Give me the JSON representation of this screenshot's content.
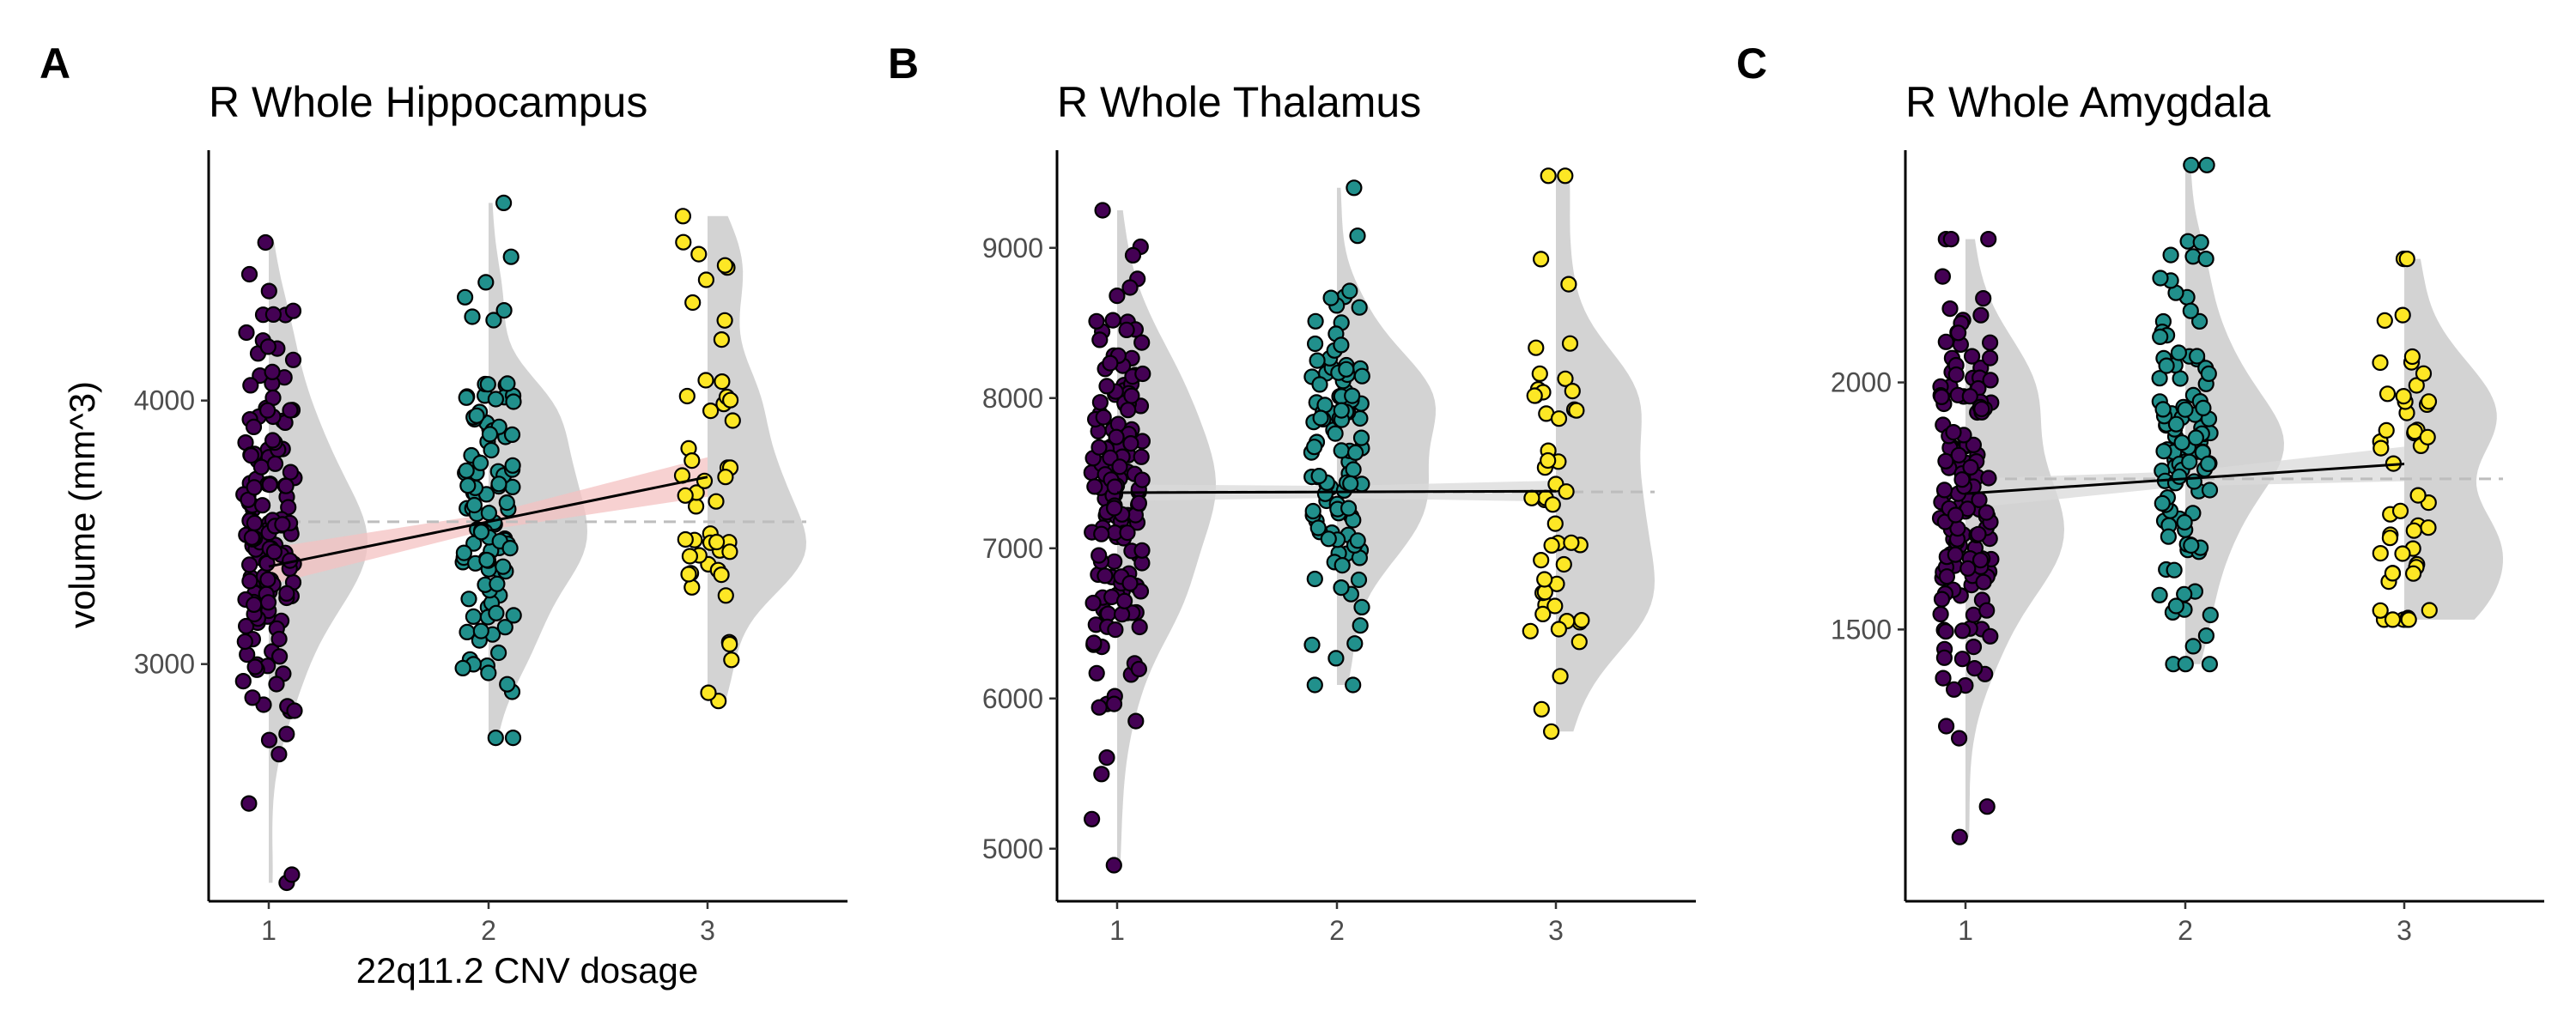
{
  "chart_data": [
    {
      "panel": "A",
      "type": "scatter",
      "title": "R Whole Hippocampus",
      "xlabel": "22q11.2 CNV dosage",
      "ylabel": "volume (mm^3)",
      "categories": [
        "1",
        "2",
        "3"
      ],
      "ylim": [
        2100,
        4950
      ],
      "yticks": [
        3000,
        4000
      ],
      "fit": {
        "y_at": [
          3370,
          3540,
          3710
        ],
        "ci_halfwidth": [
          70,
          30,
          75
        ],
        "band_color": "#f4c2c2"
      },
      "reference_line": 3540,
      "groups": [
        {
          "x": 1,
          "n": 150,
          "mean": 3370,
          "sd": 420,
          "min": 2170,
          "max": 4600,
          "color": "#440154"
        },
        {
          "x": 2,
          "n": 110,
          "mean": 3600,
          "sd": 380,
          "min": 2720,
          "max": 4750,
          "color": "#21908c"
        },
        {
          "x": 3,
          "n": 50,
          "mean": 3660,
          "sd": 430,
          "min": 2860,
          "max": 4700,
          "color": "#fde725"
        }
      ]
    },
    {
      "panel": "B",
      "type": "scatter",
      "title": "R Whole Thalamus",
      "xlabel": "",
      "ylabel": "",
      "categories": [
        "1",
        "2",
        "3"
      ],
      "ylim": [
        4650,
        9650
      ],
      "yticks": [
        5000,
        6000,
        7000,
        8000,
        9000
      ],
      "fit": {
        "y_at": [
          7370,
          7375,
          7380
        ],
        "ci_halfwidth": [
          55,
          40,
          70
        ],
        "band_color": "#d9d9d9"
      },
      "reference_line": 7375,
      "groups": [
        {
          "x": 1,
          "n": 150,
          "mean": 7340,
          "sd": 800,
          "min": 4890,
          "max": 9250,
          "color": "#440154"
        },
        {
          "x": 2,
          "n": 110,
          "mean": 7480,
          "sd": 650,
          "min": 6090,
          "max": 9400,
          "color": "#21908c"
        },
        {
          "x": 3,
          "n": 50,
          "mean": 7370,
          "sd": 850,
          "min": 5780,
          "max": 9480,
          "color": "#fde725"
        }
      ]
    },
    {
      "panel": "C",
      "type": "scatter",
      "title": "R Whole Amygdala",
      "xlabel": "",
      "ylabel": "",
      "categories": [
        "1",
        "2",
        "3"
      ],
      "ylim": [
        950,
        2470
      ],
      "yticks": [
        1500,
        2000
      ],
      "fit": {
        "y_at": [
          1775,
          1805,
          1835
        ],
        "ci_halfwidth": [
          30,
          15,
          35
        ],
        "band_color": "#d9d9d9"
      },
      "reference_line": 1805,
      "groups": [
        {
          "x": 1,
          "n": 150,
          "mean": 1780,
          "sd": 230,
          "min": 1080,
          "max": 2290,
          "color": "#440154"
        },
        {
          "x": 2,
          "n": 110,
          "mean": 1850,
          "sd": 220,
          "min": 1430,
          "max": 2440,
          "color": "#21908c"
        },
        {
          "x": 3,
          "n": 50,
          "mean": 1840,
          "sd": 220,
          "min": 1520,
          "max": 2250,
          "color": "#fde725"
        }
      ]
    }
  ]
}
